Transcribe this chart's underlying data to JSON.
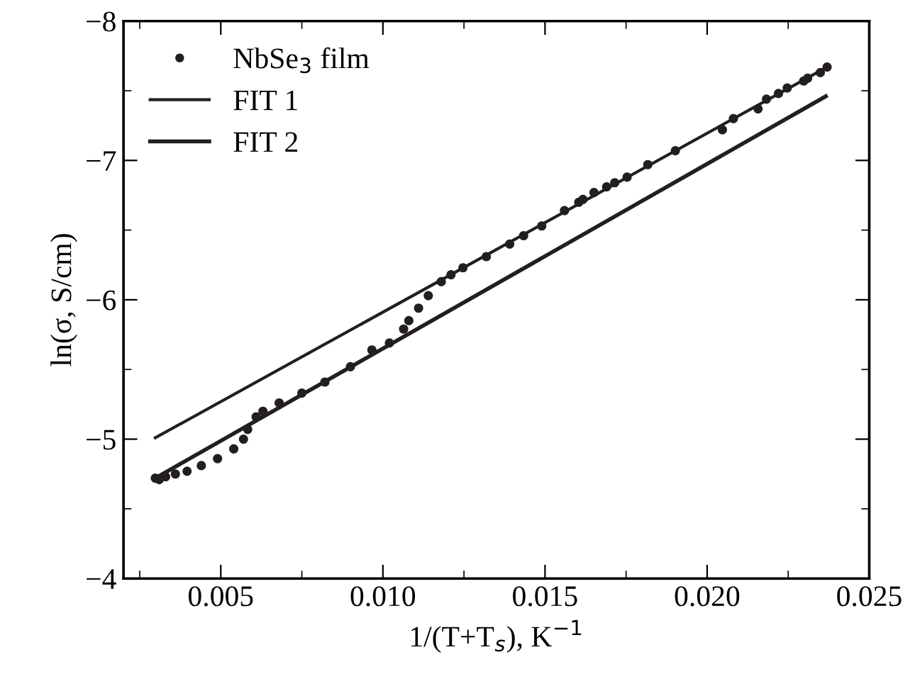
{
  "chart_data": {
    "type": "scatter",
    "xlabel": "1/(T+T$_{s}$), K$^{−1}$",
    "ylabel": "ln(σ, S/cm)",
    "xlim": [
      0.002,
      0.025
    ],
    "ylim": [
      -4,
      -8
    ],
    "xticks": [
      {
        "value": 0.005,
        "label": "0.005"
      },
      {
        "value": 0.01,
        "label": "0.010"
      },
      {
        "value": 0.015,
        "label": "0.015"
      },
      {
        "value": 0.02,
        "label": "0.020"
      },
      {
        "value": 0.025,
        "label": "0.025"
      }
    ],
    "yticks": [
      {
        "value": -8,
        "label": "−8"
      },
      {
        "value": -7,
        "label": "−7"
      },
      {
        "value": -6,
        "label": "−6"
      },
      {
        "value": -5,
        "label": "−5"
      },
      {
        "value": -4,
        "label": "−4"
      }
    ],
    "grid": false,
    "legend": "top left",
    "series": [
      {
        "name": "NbSe$_{3}$ film",
        "color": "#231f20",
        "marker": "circle",
        "x": [
          0.00298,
          0.0031,
          0.0033,
          0.0036,
          0.00396,
          0.0044,
          0.0049,
          0.0054,
          0.0057,
          0.00583,
          0.00609,
          0.0063,
          0.0068,
          0.0075,
          0.00821,
          0.009,
          0.00966,
          0.0102,
          0.01064,
          0.0108,
          0.0111,
          0.0114,
          0.0118,
          0.0121,
          0.01247,
          0.01319,
          0.01391,
          0.01434,
          0.0149,
          0.0156,
          0.01604,
          0.01617,
          0.01651,
          0.0169,
          0.01715,
          0.01753,
          0.01817,
          0.01902,
          0.02047,
          0.02081,
          0.02157,
          0.02183,
          0.0222,
          0.02247,
          0.02298,
          0.0231,
          0.02349,
          0.0237
        ],
        "values": [
          -4.72,
          -4.71,
          -4.73,
          -4.75,
          -4.77,
          -4.81,
          -4.86,
          -4.93,
          -5.0,
          -5.07,
          -5.16,
          -5.2,
          -5.26,
          -5.33,
          -5.41,
          -5.52,
          -5.64,
          -5.69,
          -5.79,
          -5.85,
          -5.94,
          -6.03,
          -6.13,
          -6.18,
          -6.23,
          -6.31,
          -6.4,
          -6.46,
          -6.53,
          -6.64,
          -6.7,
          -6.72,
          -6.77,
          -6.81,
          -6.84,
          -6.88,
          -6.97,
          -7.07,
          -7.22,
          -7.3,
          -7.37,
          -7.44,
          -7.48,
          -7.52,
          -7.57,
          -7.59,
          -7.63,
          -7.67
        ]
      },
      {
        "name": "FIT 1",
        "type": "line",
        "color": "#231f20",
        "line_style": "solid",
        "x": [
          0.00298,
          0.0237
        ],
        "values": [
          -5.01,
          -7.67
        ]
      },
      {
        "name": "FIT 2",
        "type": "line",
        "color": "#231f20",
        "line_style": "solid",
        "x": [
          0.00298,
          0.02366
        ],
        "values": [
          -4.72,
          -7.46
        ]
      }
    ]
  }
}
